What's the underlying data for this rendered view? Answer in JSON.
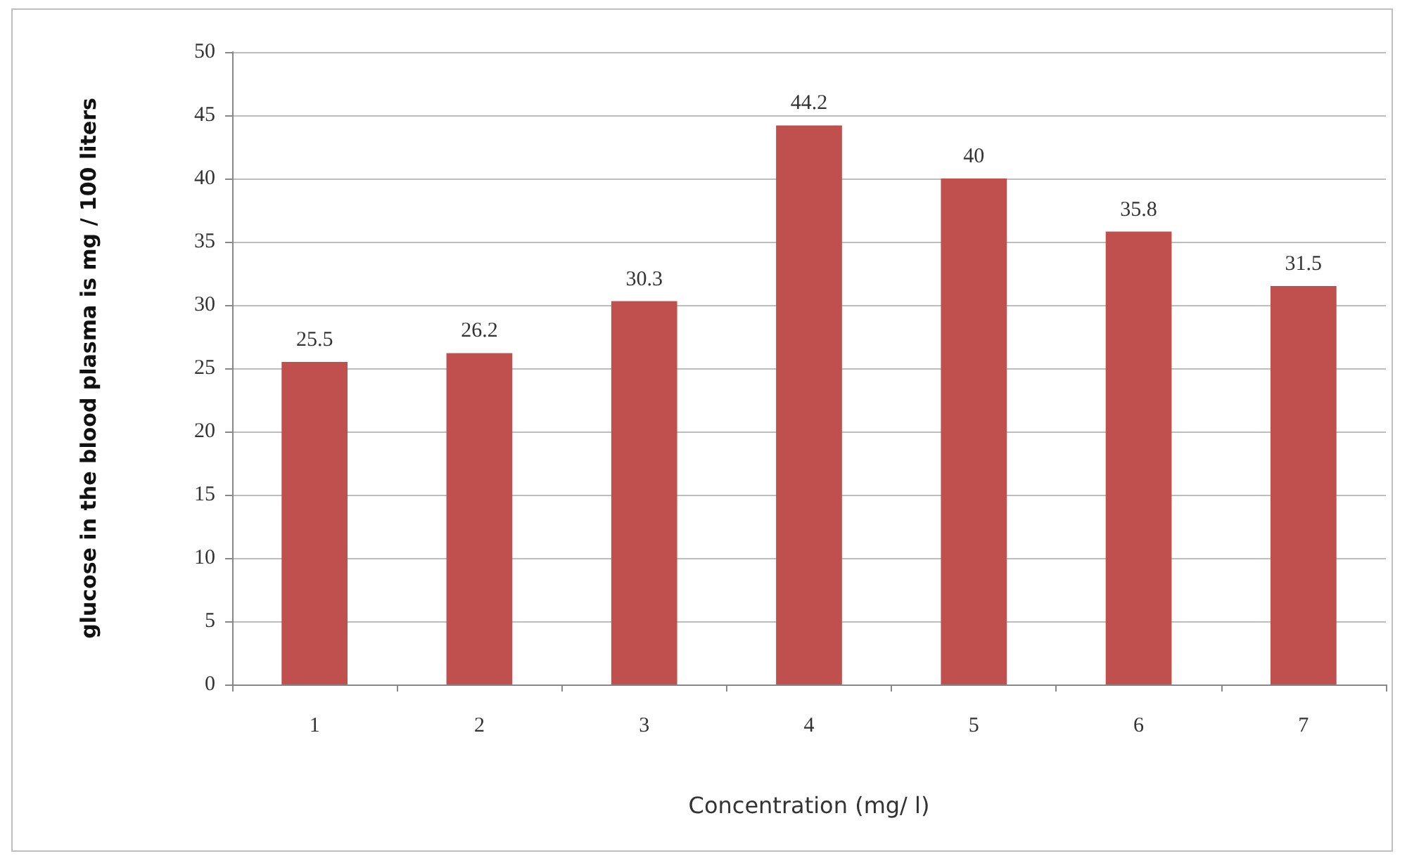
{
  "chart_data": {
    "type": "bar",
    "xlabel": "Concentration (mg/ l)",
    "ylabel": "glucose in the blood plasma is mg / 100 liters",
    "categories": [
      "1",
      "2",
      "3",
      "4",
      "5",
      "6",
      "7"
    ],
    "values": [
      25.5,
      26.2,
      30.3,
      44.2,
      40,
      35.8,
      31.5
    ],
    "color": "#c0504d",
    "ylim": [
      0,
      50
    ],
    "yticks": [
      0,
      5,
      10,
      15,
      20,
      25,
      30,
      35,
      40,
      45,
      50
    ],
    "grid": "y",
    "data_labels": true
  }
}
